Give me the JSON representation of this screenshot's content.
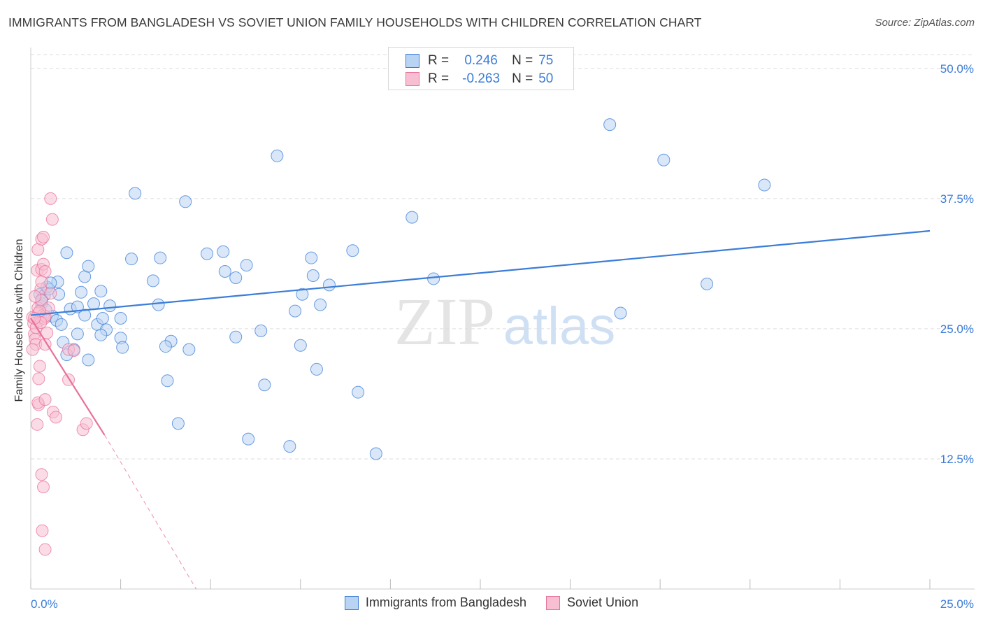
{
  "title": "IMMIGRANTS FROM BANGLADESH VS SOVIET UNION FAMILY HOUSEHOLDS WITH CHILDREN CORRELATION CHART",
  "source": "Source: ZipAtlas.com",
  "watermark": {
    "zip": "ZIP",
    "atlas": "atlas"
  },
  "colors": {
    "blue": "#3b7dd8",
    "blue_fill": "#b9d3f3",
    "pink": "#e8719a",
    "pink_fill": "#f7bfd1",
    "grid": "#dddddd",
    "tick_label": "#3b7dd8"
  },
  "legend": {
    "rows": [
      {
        "r_label": "R =",
        "r_value": "0.246",
        "n_label": "N =",
        "n_value": "75"
      },
      {
        "r_label": "R =",
        "r_value": "-0.263",
        "n_label": "N =",
        "n_value": "50"
      }
    ]
  },
  "bottom_legend": [
    "Immigrants from Bangladesh",
    "Soviet Union"
  ],
  "chart_data": {
    "type": "scatter",
    "title": "IMMIGRANTS FROM BANGLADESH VS SOVIET UNION FAMILY HOUSEHOLDS WITH CHILDREN CORRELATION CHART",
    "xlabel": "",
    "ylabel": "Family Households with Children",
    "xlim": [
      0,
      25
    ],
    "ylim": [
      0,
      52
    ],
    "x_tick_labels": [
      "0.0%",
      "25.0%"
    ],
    "y_ticks": [
      12.5,
      25.0,
      37.5,
      50.0
    ],
    "y_tick_labels": [
      "12.5%",
      "25.0%",
      "37.5%",
      "50.0%"
    ],
    "grid": true,
    "series": [
      {
        "name": "Immigrants from Bangladesh",
        "color": "#3b7dd8",
        "trend": {
          "x0": 0.0,
          "y0": 26.3,
          "x1": 25.0,
          "y1": 34.4
        },
        "points": [
          [
            0.25,
            28.3
          ],
          [
            0.3,
            27.4
          ],
          [
            0.38,
            28.2
          ],
          [
            0.45,
            29.0
          ],
          [
            0.5,
            28.8
          ],
          [
            0.6,
            26.2
          ],
          [
            0.72,
            25.8
          ],
          [
            0.78,
            28.3
          ],
          [
            0.75,
            29.5
          ],
          [
            0.85,
            25.4
          ],
          [
            0.9,
            23.7
          ],
          [
            1.0,
            32.3
          ],
          [
            1.1,
            26.9
          ],
          [
            1.5,
            26.3
          ],
          [
            1.3,
            27.1
          ],
          [
            1.4,
            28.5
          ],
          [
            1.5,
            30.0
          ],
          [
            1.6,
            31.0
          ],
          [
            1.75,
            27.4
          ],
          [
            1.85,
            25.4
          ],
          [
            1.95,
            28.6
          ],
          [
            2.1,
            24.9
          ],
          [
            2.0,
            26.0
          ],
          [
            2.2,
            27.2
          ],
          [
            2.5,
            26.0
          ],
          [
            2.8,
            31.7
          ],
          [
            2.9,
            38.0
          ],
          [
            3.4,
            29.6
          ],
          [
            3.55,
            27.3
          ],
          [
            3.6,
            31.8
          ],
          [
            3.9,
            23.8
          ],
          [
            3.8,
            20.0
          ],
          [
            4.1,
            15.9
          ],
          [
            4.4,
            23.0
          ],
          [
            4.3,
            37.2
          ],
          [
            4.9,
            32.2
          ],
          [
            5.35,
            32.4
          ],
          [
            5.4,
            30.5
          ],
          [
            5.7,
            29.9
          ],
          [
            5.7,
            24.2
          ],
          [
            6.0,
            31.1
          ],
          [
            6.4,
            24.8
          ],
          [
            6.5,
            19.6
          ],
          [
            6.85,
            41.6
          ],
          [
            7.2,
            13.7
          ],
          [
            7.35,
            26.7
          ],
          [
            7.5,
            23.4
          ],
          [
            7.55,
            28.3
          ],
          [
            7.8,
            31.8
          ],
          [
            7.85,
            30.1
          ],
          [
            7.95,
            21.1
          ],
          [
            8.05,
            27.3
          ],
          [
            8.3,
            29.2
          ],
          [
            8.95,
            32.5
          ],
          [
            9.1,
            18.9
          ],
          [
            9.6,
            13.0
          ],
          [
            10.6,
            35.7
          ],
          [
            11.2,
            29.8
          ],
          [
            16.1,
            44.6
          ],
          [
            16.4,
            26.5
          ],
          [
            17.6,
            41.2
          ],
          [
            18.8,
            29.3
          ],
          [
            20.4,
            38.8
          ],
          [
            1.6,
            22.0
          ],
          [
            1.2,
            23.0
          ],
          [
            0.55,
            29.4
          ],
          [
            0.42,
            26.8
          ],
          [
            2.5,
            24.1
          ],
          [
            2.55,
            23.2
          ],
          [
            0.3,
            27.8
          ],
          [
            1.0,
            22.5
          ],
          [
            1.3,
            24.5
          ],
          [
            3.75,
            23.3
          ],
          [
            6.05,
            14.4
          ],
          [
            1.95,
            24.4
          ]
        ]
      },
      {
        "name": "Soviet Union",
        "color": "#e8719a",
        "trend": {
          "x0": 0.0,
          "y0": 26.0,
          "x1": 2.05,
          "y1": 14.8
        },
        "trend_dashed": {
          "x0": 2.05,
          "y0": 14.8,
          "x1": 4.6,
          "y1": 0.0
        },
        "points": [
          [
            0.05,
            26.1
          ],
          [
            0.08,
            25.5
          ],
          [
            0.1,
            24.5
          ],
          [
            0.12,
            24.0
          ],
          [
            0.14,
            23.5
          ],
          [
            0.05,
            23.0
          ],
          [
            0.2,
            27.0
          ],
          [
            0.22,
            26.5
          ],
          [
            0.25,
            25.8
          ],
          [
            0.28,
            28.8
          ],
          [
            0.3,
            27.7
          ],
          [
            0.18,
            30.6
          ],
          [
            0.2,
            32.6
          ],
          [
            0.3,
            33.6
          ],
          [
            0.35,
            33.8
          ],
          [
            0.3,
            30.7
          ],
          [
            0.35,
            31.2
          ],
          [
            0.4,
            30.5
          ],
          [
            0.35,
            26.3
          ],
          [
            0.38,
            26.0
          ],
          [
            0.45,
            24.6
          ],
          [
            0.4,
            26.2
          ],
          [
            0.5,
            27.0
          ],
          [
            0.55,
            28.4
          ],
          [
            0.55,
            37.5
          ],
          [
            0.6,
            35.5
          ],
          [
            0.25,
            21.4
          ],
          [
            0.22,
            20.2
          ],
          [
            0.22,
            17.7
          ],
          [
            0.2,
            17.9
          ],
          [
            0.18,
            15.8
          ],
          [
            0.4,
            18.2
          ],
          [
            0.62,
            17.0
          ],
          [
            0.7,
            16.5
          ],
          [
            1.05,
            23.0
          ],
          [
            1.2,
            22.9
          ],
          [
            1.05,
            20.1
          ],
          [
            1.45,
            15.3
          ],
          [
            1.55,
            15.9
          ],
          [
            0.3,
            11.0
          ],
          [
            0.35,
            9.8
          ],
          [
            0.32,
            5.6
          ],
          [
            0.4,
            3.8
          ],
          [
            0.15,
            25.1
          ],
          [
            0.25,
            26.7
          ],
          [
            0.28,
            25.6
          ],
          [
            0.3,
            29.5
          ],
          [
            0.1,
            26.0
          ],
          [
            0.12,
            28.1
          ],
          [
            0.4,
            23.5
          ]
        ]
      }
    ]
  }
}
